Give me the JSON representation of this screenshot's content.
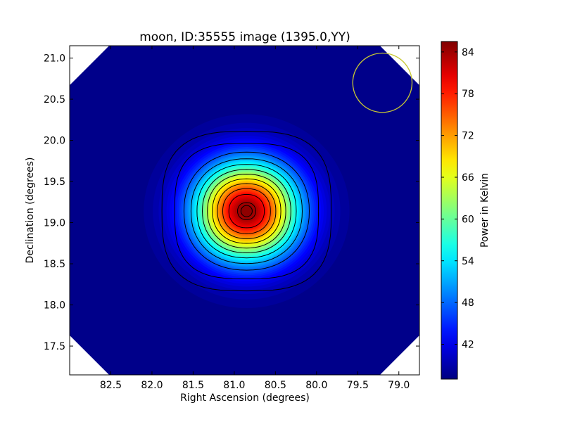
{
  "chart_data": {
    "type": "heatmap",
    "title": "moon, ID:35555 image (1395.0,YY)",
    "xlabel": "Right Ascension (degrees)",
    "ylabel": "Declination (degrees)",
    "xlim": [
      83.0,
      78.75
    ],
    "ylim": [
      17.15,
      21.15
    ],
    "x_inverted": true,
    "x_ticks": [
      {
        "value": 82.5,
        "label": "82.5"
      },
      {
        "value": 82.0,
        "label": "82.0"
      },
      {
        "value": 81.5,
        "label": "81.5"
      },
      {
        "value": 81.0,
        "label": "81.0"
      },
      {
        "value": 80.5,
        "label": "80.5"
      },
      {
        "value": 80.0,
        "label": "80.0"
      },
      {
        "value": 79.5,
        "label": "79.5"
      },
      {
        "value": 79.0,
        "label": "79.0"
      }
    ],
    "y_ticks": [
      {
        "value": 17.5,
        "label": "17.5"
      },
      {
        "value": 18.0,
        "label": "18.0"
      },
      {
        "value": 18.5,
        "label": "18.5"
      },
      {
        "value": 19.0,
        "label": "19.0"
      },
      {
        "value": 19.5,
        "label": "19.5"
      },
      {
        "value": 20.0,
        "label": "20.0"
      },
      {
        "value": 20.5,
        "label": "20.5"
      },
      {
        "value": 21.0,
        "label": "21.0"
      }
    ],
    "source": {
      "ra": 80.85,
      "dec": 19.14,
      "peak": 85.5,
      "background": 37.5
    },
    "contour_levels": [
      40.5,
      44.0,
      48.0,
      52.0,
      56.0,
      60.0,
      64.0,
      68.0,
      72.0,
      76.0,
      80.0,
      84.0
    ],
    "beam_circle": {
      "ra": 79.2,
      "dec": 20.7,
      "radius_deg": 0.36,
      "color": "#c8c832"
    },
    "colormap": "jet",
    "colorbar": {
      "label": "Power in Kelvin",
      "range": [
        37.0,
        85.5
      ],
      "ticks": [
        {
          "value": 42,
          "label": "42"
        },
        {
          "value": 48,
          "label": "48"
        },
        {
          "value": 54,
          "label": "54"
        },
        {
          "value": 60,
          "label": "60"
        },
        {
          "value": 66,
          "label": "66"
        },
        {
          "value": 72,
          "label": "72"
        },
        {
          "value": 78,
          "label": "78"
        },
        {
          "value": 84,
          "label": "84"
        }
      ]
    },
    "grid": false
  }
}
